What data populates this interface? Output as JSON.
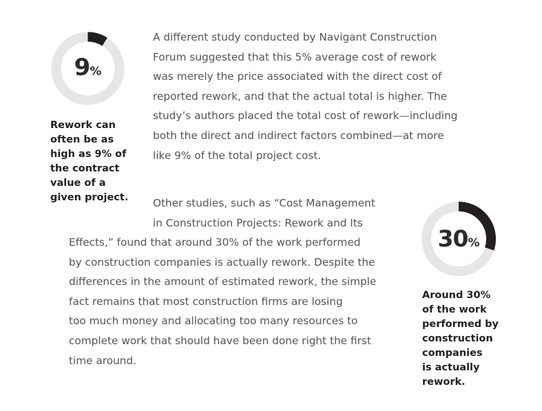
{
  "stat1": {
    "value": "9",
    "unit": "%",
    "fraction": 0.09,
    "caption_lines": [
      "Rework can",
      "often be as",
      "high as 9% of",
      "the contract",
      "value of a",
      "given project."
    ]
  },
  "stat2": {
    "value": "30",
    "unit": "%",
    "fraction": 0.3,
    "caption_lines": [
      "Around 30%",
      "of the work",
      "performed by",
      "construction",
      "companies",
      "is actually",
      "rework."
    ]
  },
  "paragraph1": [
    "A different study conducted by Navigant Construction",
    "Forum suggested that this 5% average cost of rework",
    "was merely the price associated with the direct cost of",
    "reported rework, and that the actual total is higher. The",
    "study’s authors placed the total cost of rework—including",
    "both the direct and indirect factors combined—at more",
    "like 9% of the total project cost."
  ],
  "paragraph2": [
    "Other studies, such as “Cost Management",
    "in Construction Projects: Rework and Its",
    "Effects,” found that around 30% of the work performed",
    "by construction companies is actually rework. Despite the",
    "differences in the amount of estimated rework, the simple",
    "fact remains that most construction firms are losing",
    "too much money and allocating too many resources to",
    "complete work that should have been done right the first",
    "time around."
  ],
  "colors": {
    "ring_track": "#e6e6e6",
    "ring_fill": "#231f20",
    "body_text": "#555555",
    "callout_text": "#231f20"
  }
}
